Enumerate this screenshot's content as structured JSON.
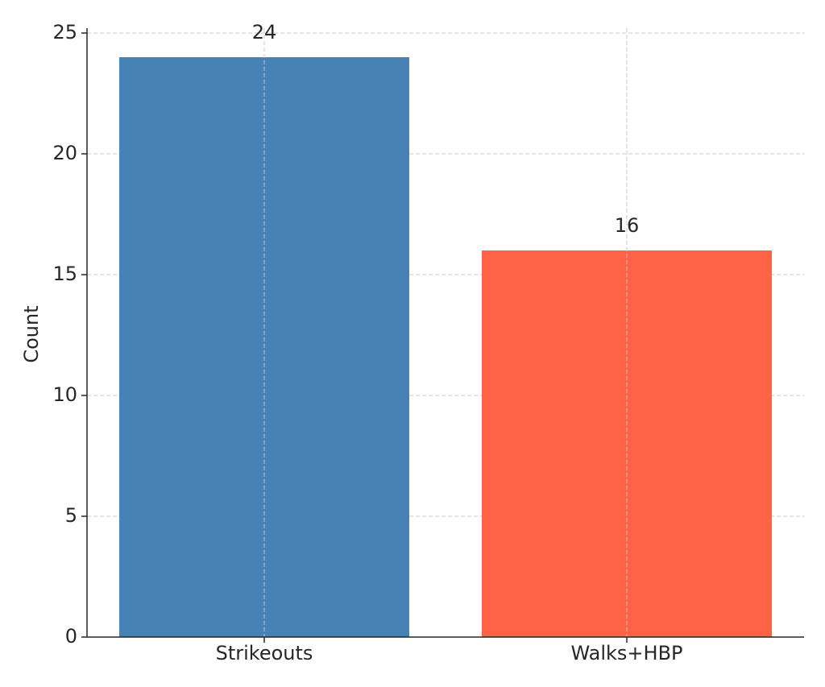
{
  "chart_data": {
    "type": "bar",
    "y_label": "Count",
    "categories": [
      "Strikeouts",
      "Walks+HBP"
    ],
    "values": [
      24,
      16
    ],
    "colors": [
      "#4682b4",
      "#ff6347"
    ],
    "ylim": [
      0,
      25.2
    ],
    "yticks": [
      0,
      5,
      10,
      15,
      20,
      25
    ],
    "grid": true
  }
}
